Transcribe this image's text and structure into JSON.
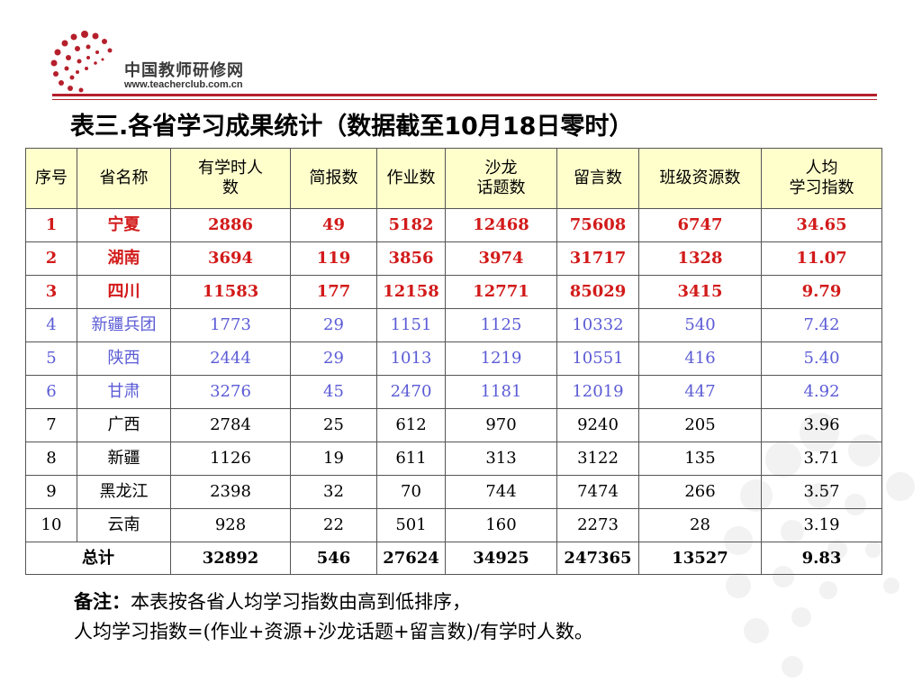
{
  "logo": {
    "name_cn": "中国教师研修网",
    "url": "www.teacherclub.com.cn",
    "color": "#b51f2b"
  },
  "title": "表三.各省学习成果统计（数据截至10月18日零时）",
  "table": {
    "header_bg": "#ffffcc",
    "headers": [
      [
        "序号"
      ],
      [
        "省名称"
      ],
      [
        "有学时人",
        "数"
      ],
      [
        "简报数"
      ],
      [
        "作业数"
      ],
      [
        "沙龙",
        "话题数"
      ],
      [
        "留言数"
      ],
      [
        "班级资源数"
      ],
      [
        "人均",
        "学习指数"
      ]
    ],
    "rows": [
      [
        "1",
        "宁夏",
        "2886",
        "49",
        "5182",
        "12468",
        "75608",
        "6747",
        "34.65"
      ],
      [
        "2",
        "湖南",
        "3694",
        "119",
        "3856",
        "3974",
        "31717",
        "1328",
        "11.07"
      ],
      [
        "3",
        "四川",
        "11583",
        "177",
        "12158",
        "12771",
        "85029",
        "3415",
        "9.79"
      ],
      [
        "4",
        "新疆兵团",
        "1773",
        "29",
        "1151",
        "1125",
        "10332",
        "540",
        "7.42"
      ],
      [
        "5",
        "陕西",
        "2444",
        "29",
        "1013",
        "1219",
        "10551",
        "416",
        "5.40"
      ],
      [
        "6",
        "甘肃",
        "3276",
        "45",
        "2470",
        "1181",
        "12019",
        "447",
        "4.92"
      ],
      [
        "7",
        "广西",
        "2784",
        "25",
        "612",
        "970",
        "9240",
        "205",
        "3.96"
      ],
      [
        "8",
        "新疆",
        "1126",
        "19",
        "611",
        "313",
        "3122",
        "135",
        "3.71"
      ],
      [
        "9",
        "黑龙江",
        "2398",
        "32",
        "70",
        "744",
        "7474",
        "266",
        "3.57"
      ],
      [
        "10",
        "云南",
        "928",
        "22",
        "501",
        "160",
        "2273",
        "28",
        "3.19"
      ]
    ],
    "row_colors": {
      "top": "#d21a1a",
      "middle": "#5b5bd6",
      "rest": "#000000"
    },
    "total": {
      "label": "总计",
      "values": [
        "32892",
        "546",
        "27624",
        "34925",
        "247365",
        "13527",
        "9.83"
      ]
    }
  },
  "note": {
    "label": "备注：",
    "line1": "本表按各省人均学习指数由高到低排序，",
    "line2": "人均学习指数=(作业+资源+沙龙话题+留言数)/有学时人数。"
  }
}
